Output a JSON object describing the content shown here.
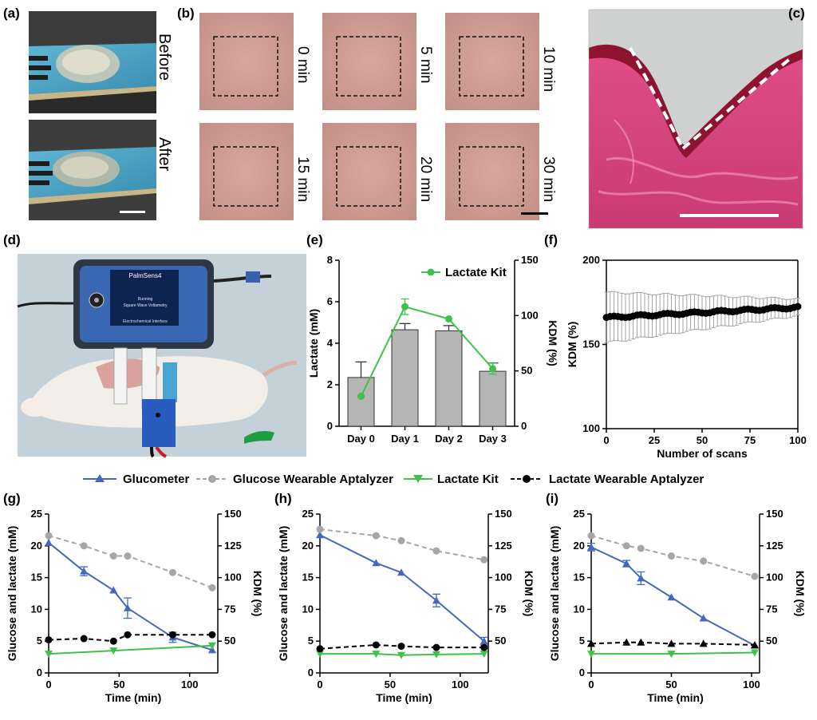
{
  "panel_labels": {
    "a": "(a)",
    "b": "(b)",
    "c": "(c)",
    "d": "(d)",
    "e": "(e)",
    "f": "(f)",
    "g": "(g)",
    "h": "(h)",
    "i": "(i)"
  },
  "panel_a": {
    "before_label": "Before",
    "after_label": "After"
  },
  "panel_b": {
    "times": [
      "0 min",
      "5 min",
      "10 min",
      "15 min",
      "20 min",
      "30 min"
    ]
  },
  "panel_d": {
    "device_brand": "PalmSens4",
    "screen_lines": [
      "Running",
      "Square Wave Voltametry"
    ],
    "device_footer": "Electrochemical Interface"
  },
  "legend": {
    "glucometer": "Glucometer",
    "glucose_apt": "Glucose Wearable Aptalyzer",
    "lactate_kit": "Lactate Kit",
    "lactate_apt": "Lactate Wearable Aptalyzer"
  },
  "colors": {
    "glucometer": "#4468c0",
    "glucose_apt": "#a6a6a6",
    "lactate_kit": "#3ec24a",
    "lactate_apt": "#000000",
    "bar": "#b5b5b5"
  },
  "chart_data": [
    {
      "id": "e",
      "type": "bar",
      "categories": [
        "Day 0",
        "Day 1",
        "Day 2",
        "Day 3"
      ],
      "values": [
        2.35,
        4.65,
        4.6,
        2.65
      ],
      "errors": [
        0.75,
        0.3,
        0.25,
        0.4
      ],
      "ylabel": "Lactate (mM)",
      "ylim": [
        0,
        8
      ],
      "yticks": [
        0,
        2,
        4,
        6,
        8
      ],
      "y2label": "KDM (%)",
      "y2lim": [
        0,
        150
      ],
      "y2ticks": [
        0,
        50,
        100,
        150
      ],
      "series": [
        {
          "name": "Lactate Kit",
          "axis": "right",
          "values": [
            27,
            108,
            97,
            52
          ],
          "errors": [
            0,
            7,
            0,
            5
          ]
        }
      ]
    },
    {
      "id": "f",
      "type": "scatter",
      "xlabel": "Number of scans",
      "xlim": [
        0,
        100
      ],
      "xticks": [
        0,
        25,
        50,
        75,
        100
      ],
      "ylabel": "KDM (%)",
      "ylim": [
        100,
        200
      ],
      "yticks": [
        100,
        150,
        200
      ],
      "mean_start": 166,
      "mean_end": 172,
      "error_start": 15,
      "error_end": 5
    },
    {
      "id": "g",
      "type": "line",
      "xlabel": "Time (min)",
      "xlim": [
        0,
        120
      ],
      "xticks": [
        0,
        50,
        100
      ],
      "ylabel": "Glucose and lactate (mM)",
      "ylim": [
        0,
        25
      ],
      "yticks": [
        0,
        5,
        10,
        15,
        20,
        25
      ],
      "y2label": "KDM (%)",
      "y2lim": [
        25,
        150
      ],
      "y2ticks": [
        50,
        75,
        100,
        125,
        150
      ],
      "series": [
        {
          "name": "Glucometer",
          "axis": "left",
          "x": [
            0,
            25,
            46,
            56,
            88,
            116
          ],
          "y": [
            20.5,
            16,
            13,
            10.2,
            5.6,
            3.6
          ],
          "err": [
            0,
            0.7,
            0,
            1.6,
            0.8,
            0
          ]
        },
        {
          "name": "Glucose Wearable Aptalyzer",
          "axis": "right",
          "x": [
            0,
            25,
            46,
            56,
            88,
            116
          ],
          "y": [
            133,
            125,
            117,
            117,
            104,
            92
          ]
        },
        {
          "name": "Lactate Kit",
          "axis": "left",
          "x": [
            0,
            46,
            116
          ],
          "y": [
            3,
            3.5,
            4.3
          ]
        },
        {
          "name": "Lactate Wearable Aptalyzer",
          "axis": "right",
          "x": [
            0,
            25,
            46,
            56,
            88,
            116
          ],
          "y": [
            51,
            52,
            50,
            55,
            55,
            55
          ]
        }
      ]
    },
    {
      "id": "h",
      "type": "line",
      "xlabel": "Time (min)",
      "xlim": [
        0,
        120
      ],
      "xticks": [
        0,
        50,
        100
      ],
      "ylabel": "Glucose and lactate (mM)",
      "ylim": [
        0,
        25
      ],
      "yticks": [
        0,
        5,
        10,
        15,
        20,
        25
      ],
      "y2label": "KDM (%)",
      "y2lim": [
        25,
        150
      ],
      "y2ticks": [
        50,
        75,
        100,
        125,
        150
      ],
      "series": [
        {
          "name": "Glucometer",
          "axis": "left",
          "x": [
            0,
            40,
            58,
            83,
            117
          ],
          "y": [
            21.7,
            17.3,
            15.8,
            11.4,
            5
          ],
          "err": [
            0,
            0,
            0,
            1,
            0.6
          ]
        },
        {
          "name": "Glucose Wearable Aptalyzer",
          "axis": "right",
          "x": [
            0,
            40,
            58,
            83,
            117
          ],
          "y": [
            138,
            133,
            129,
            121,
            114
          ]
        },
        {
          "name": "Lactate Kit",
          "axis": "left",
          "x": [
            0,
            40,
            58,
            83,
            117
          ],
          "y": [
            3,
            3,
            2.8,
            2.9,
            3
          ]
        },
        {
          "name": "Lactate Wearable Aptalyzer",
          "axis": "right",
          "x": [
            0,
            40,
            58,
            83,
            117
          ],
          "y": [
            44,
            47,
            46,
            45,
            45
          ]
        }
      ]
    },
    {
      "id": "i",
      "type": "line",
      "xlabel": "Time (min)",
      "xlim": [
        0,
        105
      ],
      "xticks": [
        0,
        50,
        100
      ],
      "ylabel": "Glucose and lactate (mM)",
      "ylim": [
        0,
        25
      ],
      "yticks": [
        0,
        5,
        10,
        15,
        20,
        25
      ],
      "y2label": "KDM (%)",
      "y2lim": [
        25,
        150
      ],
      "y2ticks": [
        50,
        75,
        100,
        125,
        150
      ],
      "series": [
        {
          "name": "Glucometer",
          "axis": "left",
          "x": [
            0,
            22,
            31,
            50,
            70,
            102
          ],
          "y": [
            19.8,
            17.2,
            14.9,
            11.9,
            8.6,
            4.3
          ],
          "err": [
            0.6,
            0.5,
            1,
            0,
            0,
            0
          ]
        },
        {
          "name": "Glucose Wearable Aptalyzer",
          "axis": "right",
          "x": [
            0,
            22,
            31,
            50,
            70,
            102
          ],
          "y": [
            133,
            125,
            123,
            117,
            113,
            101
          ]
        },
        {
          "name": "Lactate Kit",
          "axis": "left",
          "x": [
            0,
            50,
            102
          ],
          "y": [
            3,
            3,
            3.2
          ]
        },
        {
          "name": "Lactate Wearable Aptalyzer",
          "axis": "right",
          "x": [
            0,
            22,
            31,
            50,
            70,
            102
          ],
          "y": [
            48,
            49,
            49,
            48,
            48,
            47
          ]
        }
      ]
    }
  ]
}
